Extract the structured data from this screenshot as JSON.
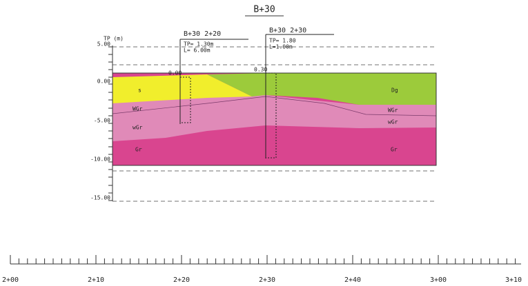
{
  "title": "B+30",
  "axis_label": "TP (m)",
  "elevation_ticks": [
    "5.00",
    "0.00",
    "-5.00",
    "-10.00",
    "-15.00"
  ],
  "boreholes": [
    {
      "label": "B+30  2+20",
      "tp": "TP= 1.30m",
      "length": "L= 6.00m",
      "top_level": "0.00"
    },
    {
      "label": "B+30  2+30",
      "tp": "TP= 1.80",
      "length": "L=1.00m",
      "top_level": "0.30"
    }
  ],
  "layers": {
    "left_top": "s",
    "right_top": "Dg",
    "right_mid": "WGr",
    "left_mid": "WGr",
    "left_low": "wGr",
    "right_low": "wGr",
    "left_base": "Gr",
    "right_base": "Gr"
  },
  "stations": [
    "2+00",
    "2+10",
    "2+20",
    "2+30",
    "2+40",
    "3+00",
    "3+10"
  ]
}
